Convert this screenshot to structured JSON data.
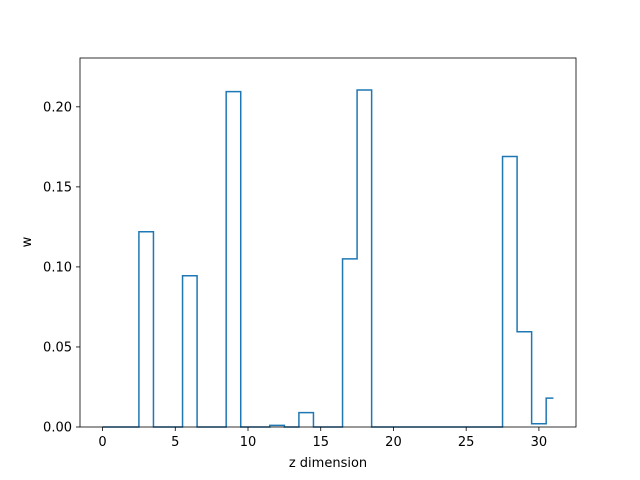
{
  "chart_data": {
    "type": "line",
    "drawstyle": "steps-mid",
    "xlabel": "z dimension",
    "ylabel": "w",
    "xlim": [
      -1.55,
      32.55
    ],
    "ylim": [
      0,
      0.2305
    ],
    "xticks": [
      0,
      5,
      10,
      15,
      20,
      25,
      30
    ],
    "xtick_labels": [
      "0",
      "5",
      "10",
      "15",
      "20",
      "25",
      "30"
    ],
    "yticks": [
      0.0,
      0.05,
      0.1,
      0.15,
      0.2
    ],
    "ytick_labels": [
      "0.00",
      "0.05",
      "0.10",
      "0.15",
      "0.20"
    ],
    "grid": false,
    "series": [
      {
        "color": "#1f77b4",
        "x": [
          0,
          1,
          2,
          3,
          4,
          5,
          6,
          7,
          8,
          9,
          10,
          11,
          12,
          13,
          14,
          15,
          16,
          17,
          18,
          19,
          20,
          21,
          22,
          23,
          24,
          25,
          26,
          27,
          28,
          29,
          30,
          31
        ],
        "y": [
          0,
          0,
          0,
          0.122,
          0,
          0,
          0.0945,
          0,
          0,
          0.2095,
          0,
          0,
          0.001,
          0,
          0.009,
          0,
          0,
          0.105,
          0.2105,
          0,
          0,
          0,
          0,
          0,
          0,
          0,
          0,
          0,
          0.169,
          0.0595,
          0.002,
          0.018
        ]
      }
    ]
  }
}
